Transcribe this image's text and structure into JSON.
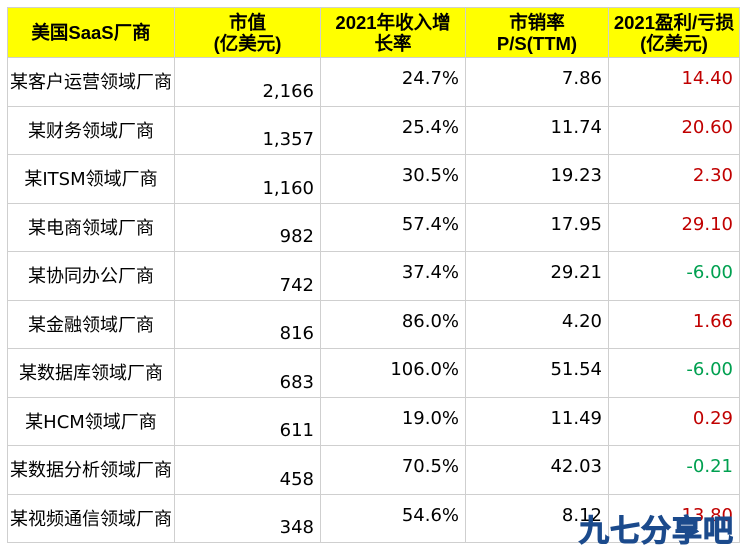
{
  "header": {
    "name": "美国SaaS厂商",
    "cap": "市值\n(亿美元)",
    "growth": "2021年收入增\n长率",
    "ps": "市销率\nP/S(TTM)",
    "profit": "2021盈利/亏损\n(亿美元)"
  },
  "rows": [
    {
      "name": "某客户运营领域厂商",
      "cap": "2,166",
      "growth": "24.7%",
      "ps": "7.86",
      "profit": "14.40",
      "sign": "pos"
    },
    {
      "name": "某财务领域厂商",
      "cap": "1,357",
      "growth": "25.4%",
      "ps": "11.74",
      "profit": "20.60",
      "sign": "pos"
    },
    {
      "name": "某ITSM领域厂商",
      "cap": "1,160",
      "growth": "30.5%",
      "ps": "19.23",
      "profit": "2.30",
      "sign": "pos"
    },
    {
      "name": "某电商领域厂商",
      "cap": "982",
      "growth": "57.4%",
      "ps": "17.95",
      "profit": "29.10",
      "sign": "pos"
    },
    {
      "name": "某协同办公厂商",
      "cap": "742",
      "growth": "37.4%",
      "ps": "29.21",
      "profit": "-6.00",
      "sign": "neg"
    },
    {
      "name": "某金融领域厂商",
      "cap": "816",
      "growth": "86.0%",
      "ps": "4.20",
      "profit": "1.66",
      "sign": "pos"
    },
    {
      "name": "某数据库领域厂商",
      "cap": "683",
      "growth": "106.0%",
      "ps": "51.54",
      "profit": "-6.00",
      "sign": "neg"
    },
    {
      "name": "某HCM领域厂商",
      "cap": "611",
      "growth": "19.0%",
      "ps": "11.49",
      "profit": "0.29",
      "sign": "pos"
    },
    {
      "name": "某数据分析领域厂商",
      "cap": "458",
      "growth": "70.5%",
      "ps": "42.03",
      "profit": "-0.21",
      "sign": "neg"
    },
    {
      "name": "某视频通信领域厂商",
      "cap": "348",
      "growth": "54.6%",
      "ps": "8.12",
      "profit": "13.80",
      "sign": "pos"
    }
  ],
  "colors": {
    "positive": "#c00000",
    "negative": "#00a050",
    "header_bg": "#ffff00"
  },
  "watermark": "九七分享吧"
}
